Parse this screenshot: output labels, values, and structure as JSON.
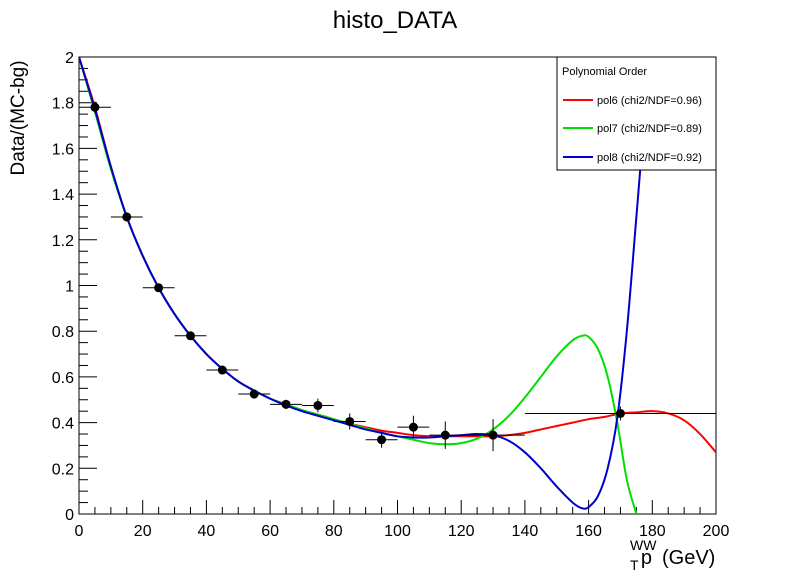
{
  "chart_data": {
    "type": "scatter",
    "title": "histo_DATA",
    "ylabel": "Data/(MC-bg)",
    "xlabel": {
      "main": "p",
      "superscript": "WW",
      "subscript": "T",
      "unit": "(GeV)"
    },
    "xlim": [
      0,
      200
    ],
    "ylim": [
      0,
      2
    ],
    "x_ticks": [
      0,
      20,
      40,
      60,
      80,
      100,
      120,
      140,
      160,
      180,
      200
    ],
    "y_ticks": [
      0,
      0.2,
      0.4,
      0.6,
      0.8,
      1,
      1.2,
      1.4,
      1.6,
      1.8,
      2
    ],
    "x_tick_labels": [
      "0",
      "20",
      "40",
      "60",
      "80",
      "100",
      "120",
      "140",
      "160",
      "180",
      "200"
    ],
    "y_tick_labels": [
      "0",
      "0.2",
      "0.4",
      "0.6",
      "0.8",
      "1",
      "1.2",
      "1.4",
      "1.6",
      "1.8",
      "2"
    ],
    "grid": false,
    "legend": {
      "title": "Polynomial Order",
      "placement": "top-right",
      "entries": [
        {
          "label": "pol6 (chi2/NDF=0.96)",
          "color": "#ff0000"
        },
        {
          "label": "pol7 (chi2/NDF=0.89)",
          "color": "#00e000"
        },
        {
          "label": "pol8 (chi2/NDF=0.92)",
          "color": "#0000cc"
        }
      ]
    },
    "data_points": [
      {
        "x": 5,
        "y": 1.78,
        "xerr": 5,
        "yerr": 0.025
      },
      {
        "x": 15,
        "y": 1.3,
        "xerr": 5,
        "yerr": 0.02
      },
      {
        "x": 25,
        "y": 0.99,
        "xerr": 5,
        "yerr": 0.015
      },
      {
        "x": 35,
        "y": 0.78,
        "xerr": 5,
        "yerr": 0.015
      },
      {
        "x": 45,
        "y": 0.63,
        "xerr": 5,
        "yerr": 0.015
      },
      {
        "x": 55,
        "y": 0.525,
        "xerr": 5,
        "yerr": 0.02
      },
      {
        "x": 65,
        "y": 0.48,
        "xerr": 5,
        "yerr": 0.02
      },
      {
        "x": 75,
        "y": 0.475,
        "xerr": 5,
        "yerr": 0.03
      },
      {
        "x": 85,
        "y": 0.405,
        "xerr": 5,
        "yerr": 0.035
      },
      {
        "x": 95,
        "y": 0.325,
        "xerr": 5,
        "yerr": 0.035
      },
      {
        "x": 105,
        "y": 0.38,
        "xerr": 5,
        "yerr": 0.05
      },
      {
        "x": 115,
        "y": 0.345,
        "xerr": 5,
        "yerr": 0.06
      },
      {
        "x": 130,
        "y": 0.345,
        "xerr": 10,
        "yerr": 0.07
      },
      {
        "x": 170,
        "y": 0.44,
        "xerr": 30,
        "yerr": 0.03
      }
    ],
    "series": [
      {
        "name": "pol6 (chi2/NDF=0.96)",
        "color": "#ff0000",
        "x": [
          0,
          5,
          10,
          15,
          20,
          25,
          30,
          35,
          40,
          45,
          50,
          55,
          60,
          65,
          70,
          75,
          80,
          85,
          90,
          95,
          100,
          105,
          110,
          115,
          120,
          125,
          130,
          135,
          140,
          145,
          150,
          155,
          160,
          165,
          170,
          175,
          180,
          185,
          190,
          195,
          200
        ],
        "y": [
          2.0,
          1.78,
          1.52,
          1.3,
          1.13,
          0.99,
          0.875,
          0.78,
          0.7,
          0.635,
          0.58,
          0.54,
          0.505,
          0.48,
          0.455,
          0.435,
          0.415,
          0.395,
          0.38,
          0.365,
          0.355,
          0.345,
          0.34,
          0.34,
          0.34,
          0.34,
          0.34,
          0.345,
          0.355,
          0.37,
          0.385,
          0.4,
          0.415,
          0.425,
          0.44,
          0.445,
          0.45,
          0.44,
          0.41,
          0.35,
          0.27
        ]
      },
      {
        "name": "pol7 (chi2/NDF=0.89)",
        "color": "#00e000",
        "x": [
          0,
          5,
          10,
          15,
          20,
          25,
          30,
          35,
          40,
          45,
          50,
          55,
          60,
          65,
          70,
          75,
          80,
          85,
          90,
          95,
          100,
          105,
          110,
          115,
          120,
          125,
          130,
          135,
          140,
          145,
          150,
          155,
          158,
          160,
          163,
          166,
          169,
          172,
          175
        ],
        "y": [
          2.0,
          1.76,
          1.51,
          1.3,
          1.13,
          0.99,
          0.875,
          0.78,
          0.7,
          0.635,
          0.58,
          0.54,
          0.505,
          0.48,
          0.455,
          0.435,
          0.415,
          0.395,
          0.375,
          0.355,
          0.34,
          0.325,
          0.31,
          0.305,
          0.31,
          0.33,
          0.37,
          0.43,
          0.51,
          0.6,
          0.69,
          0.76,
          0.78,
          0.775,
          0.72,
          0.6,
          0.4,
          0.15,
          0.0
        ]
      },
      {
        "name": "pol8 (chi2/NDF=0.92)",
        "color": "#0000cc",
        "x": [
          0,
          5,
          10,
          15,
          20,
          25,
          30,
          35,
          40,
          45,
          50,
          55,
          60,
          65,
          70,
          75,
          80,
          85,
          90,
          95,
          100,
          105,
          110,
          115,
          120,
          125,
          130,
          135,
          140,
          145,
          150,
          155,
          158,
          160,
          163,
          166,
          169,
          172,
          175,
          178,
          180
        ],
        "y": [
          2.0,
          1.77,
          1.52,
          1.3,
          1.13,
          0.99,
          0.875,
          0.78,
          0.7,
          0.635,
          0.58,
          0.54,
          0.505,
          0.475,
          0.45,
          0.43,
          0.41,
          0.39,
          0.37,
          0.355,
          0.34,
          0.335,
          0.335,
          0.34,
          0.345,
          0.35,
          0.345,
          0.32,
          0.27,
          0.2,
          0.12,
          0.05,
          0.025,
          0.03,
          0.08,
          0.2,
          0.42,
          0.8,
          1.3,
          1.8,
          2.0
        ]
      }
    ]
  }
}
